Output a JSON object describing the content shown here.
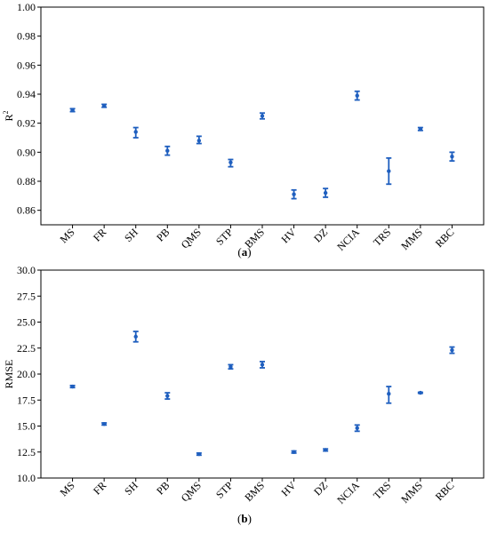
{
  "chart_data": [
    {
      "type": "scatter",
      "panel": "a",
      "caption_label": "a",
      "ylabel_main": "R",
      "ylabel_sup": "2",
      "xlabel": "",
      "ylim": [
        0.85,
        1.0
      ],
      "yticks": [
        0.86,
        0.88,
        0.9,
        0.92,
        0.94,
        0.96,
        0.98,
        1.0
      ],
      "ytick_labels": [
        "0.86",
        "0.88",
        "0.90",
        "0.92",
        "0.94",
        "0.96",
        "0.98",
        "1.00"
      ],
      "categories": [
        "MS",
        "FR",
        "SH",
        "PB",
        "QMS",
        "STP",
        "BMS",
        "HV",
        "DZ",
        "NCIA",
        "TRS",
        "MMS",
        "RBC"
      ],
      "values": [
        0.929,
        0.932,
        0.914,
        0.901,
        0.908,
        0.893,
        0.925,
        0.871,
        0.872,
        0.939,
        0.887,
        0.916,
        0.897
      ],
      "error_low": [
        0.928,
        0.931,
        0.91,
        0.898,
        0.906,
        0.89,
        0.923,
        0.868,
        0.869,
        0.936,
        0.878,
        0.915,
        0.894
      ],
      "error_high": [
        0.93,
        0.933,
        0.917,
        0.904,
        0.911,
        0.895,
        0.927,
        0.874,
        0.875,
        0.942,
        0.896,
        0.917,
        0.9
      ],
      "grid": false,
      "marker_color": "#1f5fbf"
    },
    {
      "type": "scatter",
      "panel": "b",
      "caption_label": "b",
      "ylabel_main": "RMSE",
      "ylabel_sup": "",
      "xlabel": "",
      "ylim": [
        10.0,
        30.0
      ],
      "yticks": [
        10.0,
        12.5,
        15.0,
        17.5,
        20.0,
        22.5,
        25.0,
        27.5,
        30.0
      ],
      "ytick_labels": [
        "10.0",
        "12.5",
        "15.0",
        "17.5",
        "20.0",
        "22.5",
        "25.0",
        "27.5",
        "30.0"
      ],
      "categories": [
        "MS",
        "FR",
        "SH",
        "PB",
        "QMS",
        "STP",
        "BMS",
        "HV",
        "DZ",
        "NCIA",
        "TRS",
        "MMS",
        "RBC"
      ],
      "values": [
        18.8,
        15.2,
        23.6,
        17.9,
        12.3,
        20.7,
        20.9,
        12.5,
        12.7,
        14.8,
        18.1,
        18.2,
        22.3
      ],
      "error_low": [
        18.7,
        15.1,
        23.1,
        17.6,
        12.2,
        20.5,
        20.6,
        12.4,
        12.6,
        14.5,
        17.2,
        18.15,
        22.0
      ],
      "error_high": [
        18.9,
        15.3,
        24.1,
        18.2,
        12.4,
        20.9,
        21.2,
        12.6,
        12.8,
        15.1,
        18.8,
        18.25,
        22.6
      ],
      "grid": false,
      "marker_color": "#1f5fbf"
    }
  ]
}
